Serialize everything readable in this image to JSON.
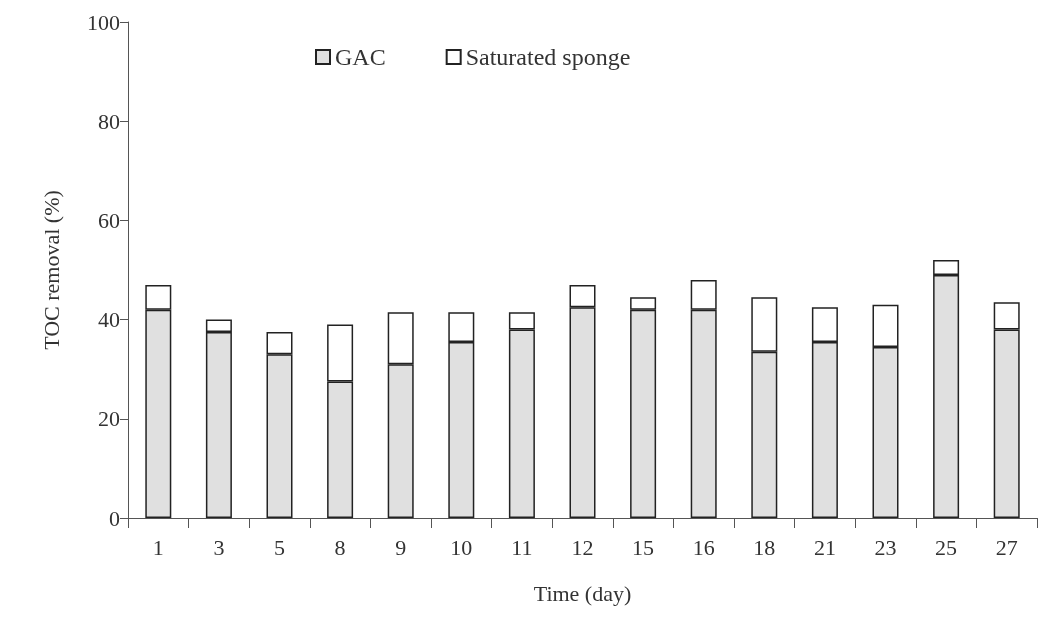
{
  "chart_data": {
    "type": "bar",
    "stacked": true,
    "xlabel": "Time (day)",
    "ylabel": "TOC removal (%)",
    "categories": [
      "1",
      "3",
      "5",
      "8",
      "9",
      "10",
      "11",
      "12",
      "15",
      "16",
      "18",
      "21",
      "23",
      "25",
      "27"
    ],
    "series": [
      {
        "name": "GAC",
        "color": "#e0e0e0",
        "values": [
          42,
          37.5,
          33,
          27.5,
          31,
          35.5,
          38,
          42.5,
          42,
          42,
          33.5,
          35.5,
          34.5,
          49,
          38
        ]
      },
      {
        "name": "Saturated sponge",
        "color": "#ffffff",
        "values": [
          5,
          2.5,
          4.5,
          11.5,
          10.5,
          6,
          3.5,
          4.5,
          2.5,
          6,
          11,
          7,
          8.5,
          3,
          5.5
        ]
      }
    ],
    "ylim": [
      0,
      100
    ],
    "yticks": [
      0,
      20,
      40,
      60,
      80,
      100
    ],
    "grid": false,
    "legend": "top"
  }
}
